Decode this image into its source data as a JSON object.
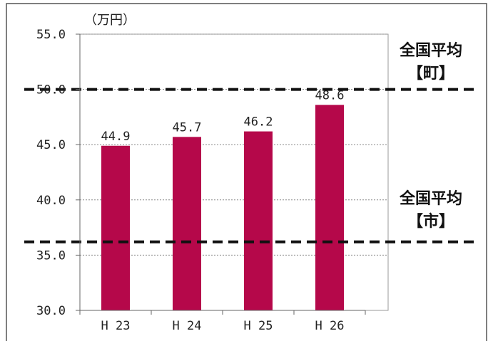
{
  "chart_data": {
    "type": "bar",
    "unit_label": "（万円）",
    "categories": [
      "H 23",
      "H 24",
      "H 25",
      "H 26"
    ],
    "values": [
      44.9,
      45.7,
      46.2,
      48.6
    ],
    "data_labels": [
      "44.9",
      "45.7",
      "46.2",
      "48.6"
    ],
    "ylim": [
      30.0,
      55.0
    ],
    "yticks": [
      "30.0",
      "35.0",
      "40.0",
      "45.0",
      "50.0",
      "55.0"
    ],
    "grid": true,
    "bar_color": "#b5084a",
    "reference_lines": [
      {
        "value": 50.0,
        "label_line1": "全国平均",
        "label_line2": "【町】"
      },
      {
        "value": 36.2,
        "label_line1": "全国平均",
        "label_line2": "【市】"
      }
    ]
  }
}
